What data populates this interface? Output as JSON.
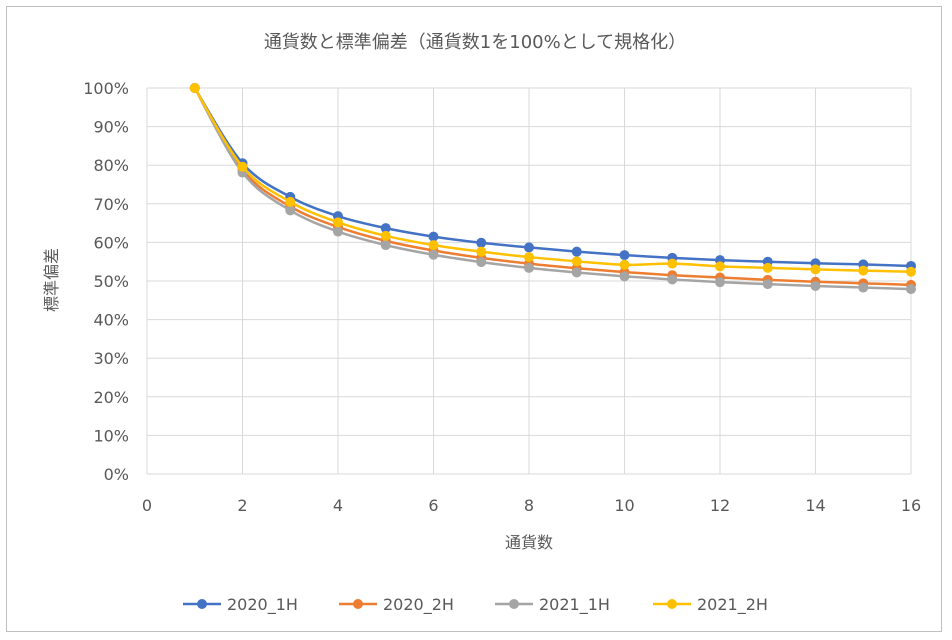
{
  "chart_data": {
    "type": "line",
    "title": "通貨数と標準偏差（通貨数1を100%として規格化）",
    "xlabel": "通貨数",
    "ylabel": "標準偏差",
    "xlim": [
      0,
      16
    ],
    "ylim": [
      0,
      1
    ],
    "x_ticks": [
      "0",
      "2",
      "4",
      "6",
      "8",
      "10",
      "12",
      "14",
      "16"
    ],
    "y_ticks": [
      "0%",
      "10%",
      "20%",
      "30%",
      "40%",
      "50%",
      "60%",
      "70%",
      "80%",
      "90%",
      "100%"
    ],
    "grid": true,
    "legend_position": "bottom",
    "x": [
      1,
      2,
      3,
      4,
      5,
      6,
      7,
      8,
      9,
      10,
      11,
      12,
      13,
      14,
      15,
      16
    ],
    "series": [
      {
        "name": "2020_1H",
        "color": "#4472C4",
        "values": [
          1.0,
          0.805,
          0.718,
          0.668,
          0.637,
          0.615,
          0.599,
          0.587,
          0.576,
          0.567,
          0.56,
          0.554,
          0.55,
          0.546,
          0.543,
          0.539
        ]
      },
      {
        "name": "2020_2H",
        "color": "#ED7D31",
        "values": [
          1.0,
          0.788,
          0.693,
          0.64,
          0.604,
          0.579,
          0.56,
          0.545,
          0.533,
          0.523,
          0.515,
          0.509,
          0.503,
          0.498,
          0.494,
          0.49
        ]
      },
      {
        "name": "2021_1H",
        "color": "#A5A5A5",
        "values": [
          1.0,
          0.781,
          0.683,
          0.628,
          0.593,
          0.568,
          0.549,
          0.534,
          0.522,
          0.512,
          0.504,
          0.497,
          0.492,
          0.487,
          0.483,
          0.479
        ]
      },
      {
        "name": "2021_2H",
        "color": "#FFC000",
        "values": [
          1.0,
          0.796,
          0.705,
          0.652,
          0.617,
          0.593,
          0.576,
          0.562,
          0.551,
          0.542,
          0.545,
          0.538,
          0.534,
          0.53,
          0.527,
          0.524
        ]
      }
    ]
  }
}
